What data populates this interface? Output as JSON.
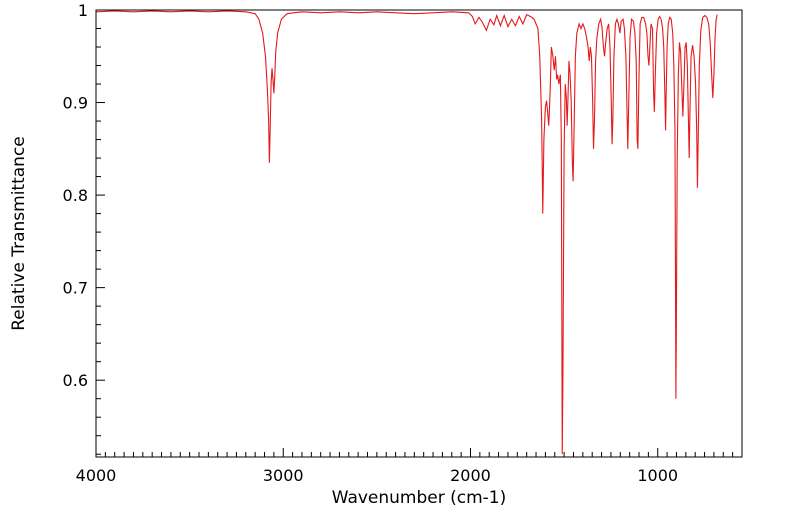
{
  "chart_data": {
    "type": "line",
    "title": "",
    "xlabel": "Wavenumber (cm-1)",
    "ylabel": "Relative Transmittance",
    "xlim": [
      4000,
      550
    ],
    "ylim": [
      0.517,
      1.0
    ],
    "x_reversed": true,
    "grid": false,
    "legend": "none",
    "line_color": "#e41a1c",
    "x_ticks": [
      {
        "value": 4000,
        "label": "4000"
      },
      {
        "value": 3000,
        "label": "3000"
      },
      {
        "value": 2000,
        "label": "2000"
      },
      {
        "value": 1000,
        "label": "1000"
      }
    ],
    "y_ticks": [
      {
        "value": 1.0,
        "label": "1"
      },
      {
        "value": 0.9,
        "label": "0.9"
      },
      {
        "value": 0.8,
        "label": "0.8"
      },
      {
        "value": 0.7,
        "label": "0.7"
      },
      {
        "value": 0.6,
        "label": "0.6"
      }
    ],
    "series": [
      {
        "points": [
          [
            4000,
            0.998
          ],
          [
            3900,
            0.999
          ],
          [
            3800,
            0.998
          ],
          [
            3700,
            0.999
          ],
          [
            3600,
            0.998
          ],
          [
            3500,
            0.999
          ],
          [
            3400,
            0.998
          ],
          [
            3300,
            0.999
          ],
          [
            3200,
            0.998
          ],
          [
            3150,
            0.996
          ],
          [
            3130,
            0.99
          ],
          [
            3110,
            0.975
          ],
          [
            3095,
            0.95
          ],
          [
            3085,
            0.915
          ],
          [
            3078,
            0.88
          ],
          [
            3074,
            0.835
          ],
          [
            3070,
            0.87
          ],
          [
            3065,
            0.92
          ],
          [
            3060,
            0.937
          ],
          [
            3055,
            0.925
          ],
          [
            3050,
            0.91
          ],
          [
            3045,
            0.93
          ],
          [
            3040,
            0.955
          ],
          [
            3030,
            0.975
          ],
          [
            3010,
            0.99
          ],
          [
            2980,
            0.996
          ],
          [
            2900,
            0.998
          ],
          [
            2800,
            0.997
          ],
          [
            2700,
            0.998
          ],
          [
            2600,
            0.997
          ],
          [
            2500,
            0.998
          ],
          [
            2400,
            0.997
          ],
          [
            2300,
            0.996
          ],
          [
            2200,
            0.997
          ],
          [
            2100,
            0.998
          ],
          [
            2010,
            0.997
          ],
          [
            1990,
            0.993
          ],
          [
            1975,
            0.985
          ],
          [
            1955,
            0.992
          ],
          [
            1940,
            0.988
          ],
          [
            1915,
            0.978
          ],
          [
            1895,
            0.99
          ],
          [
            1875,
            0.984
          ],
          [
            1860,
            0.994
          ],
          [
            1840,
            0.983
          ],
          [
            1820,
            0.994
          ],
          [
            1800,
            0.982
          ],
          [
            1780,
            0.99
          ],
          [
            1760,
            0.983
          ],
          [
            1740,
            0.993
          ],
          [
            1720,
            0.985
          ],
          [
            1700,
            0.995
          ],
          [
            1680,
            0.993
          ],
          [
            1660,
            0.99
          ],
          [
            1640,
            0.98
          ],
          [
            1630,
            0.95
          ],
          [
            1620,
            0.88
          ],
          [
            1614,
            0.78
          ],
          [
            1608,
            0.86
          ],
          [
            1600,
            0.895
          ],
          [
            1594,
            0.902
          ],
          [
            1588,
            0.89
          ],
          [
            1582,
            0.875
          ],
          [
            1575,
            0.91
          ],
          [
            1568,
            0.96
          ],
          [
            1560,
            0.95
          ],
          [
            1553,
            0.935
          ],
          [
            1546,
            0.95
          ],
          [
            1540,
            0.925
          ],
          [
            1535,
            0.93
          ],
          [
            1528,
            0.92
          ],
          [
            1520,
            0.93
          ],
          [
            1515,
            0.86
          ],
          [
            1510,
            0.52
          ],
          [
            1506,
            0.62
          ],
          [
            1500,
            0.85
          ],
          [
            1494,
            0.92
          ],
          [
            1488,
            0.905
          ],
          [
            1484,
            0.875
          ],
          [
            1480,
            0.9
          ],
          [
            1474,
            0.945
          ],
          [
            1468,
            0.93
          ],
          [
            1462,
            0.9
          ],
          [
            1456,
            0.835
          ],
          [
            1452,
            0.815
          ],
          [
            1446,
            0.88
          ],
          [
            1440,
            0.95
          ],
          [
            1432,
            0.975
          ],
          [
            1420,
            0.985
          ],
          [
            1410,
            0.98
          ],
          [
            1400,
            0.985
          ],
          [
            1390,
            0.98
          ],
          [
            1380,
            0.97
          ],
          [
            1372,
            0.96
          ],
          [
            1366,
            0.945
          ],
          [
            1360,
            0.96
          ],
          [
            1354,
            0.95
          ],
          [
            1348,
            0.905
          ],
          [
            1343,
            0.85
          ],
          [
            1338,
            0.88
          ],
          [
            1332,
            0.945
          ],
          [
            1325,
            0.97
          ],
          [
            1315,
            0.985
          ],
          [
            1305,
            0.99
          ],
          [
            1298,
            0.982
          ],
          [
            1290,
            0.96
          ],
          [
            1284,
            0.95
          ],
          [
            1278,
            0.965
          ],
          [
            1270,
            0.98
          ],
          [
            1262,
            0.985
          ],
          [
            1255,
            0.96
          ],
          [
            1248,
            0.9
          ],
          [
            1244,
            0.855
          ],
          [
            1240,
            0.88
          ],
          [
            1234,
            0.95
          ],
          [
            1226,
            0.985
          ],
          [
            1218,
            0.99
          ],
          [
            1210,
            0.985
          ],
          [
            1202,
            0.975
          ],
          [
            1195,
            0.988
          ],
          [
            1185,
            0.99
          ],
          [
            1178,
            0.98
          ],
          [
            1170,
            0.95
          ],
          [
            1164,
            0.89
          ],
          [
            1160,
            0.85
          ],
          [
            1155,
            0.9
          ],
          [
            1148,
            0.97
          ],
          [
            1140,
            0.99
          ],
          [
            1130,
            0.988
          ],
          [
            1122,
            0.975
          ],
          [
            1115,
            0.945
          ],
          [
            1110,
            0.86
          ],
          [
            1106,
            0.85
          ],
          [
            1100,
            0.93
          ],
          [
            1094,
            0.985
          ],
          [
            1085,
            0.992
          ],
          [
            1075,
            0.992
          ],
          [
            1065,
            0.985
          ],
          [
            1058,
            0.975
          ],
          [
            1052,
            0.95
          ],
          [
            1047,
            0.94
          ],
          [
            1042,
            0.96
          ],
          [
            1036,
            0.985
          ],
          [
            1028,
            0.98
          ],
          [
            1022,
            0.91
          ],
          [
            1018,
            0.89
          ],
          [
            1013,
            0.93
          ],
          [
            1006,
            0.975
          ],
          [
            998,
            0.99
          ],
          [
            990,
            0.993
          ],
          [
            982,
            0.99
          ],
          [
            974,
            0.98
          ],
          [
            968,
            0.96
          ],
          [
            962,
            0.91
          ],
          [
            958,
            0.87
          ],
          [
            955,
            0.91
          ],
          [
            950,
            0.96
          ],
          [
            944,
            0.985
          ],
          [
            936,
            0.992
          ],
          [
            928,
            0.99
          ],
          [
            920,
            0.975
          ],
          [
            914,
            0.94
          ],
          [
            908,
            0.87
          ],
          [
            903,
            0.58
          ],
          [
            900,
            0.68
          ],
          [
            896,
            0.84
          ],
          [
            890,
            0.93
          ],
          [
            884,
            0.965
          ],
          [
            878,
            0.955
          ],
          [
            872,
            0.92
          ],
          [
            866,
            0.885
          ],
          [
            860,
            0.92
          ],
          [
            854,
            0.96
          ],
          [
            848,
            0.965
          ],
          [
            842,
            0.94
          ],
          [
            836,
            0.88
          ],
          [
            832,
            0.84
          ],
          [
            828,
            0.89
          ],
          [
            822,
            0.95
          ],
          [
            814,
            0.962
          ],
          [
            806,
            0.95
          ],
          [
            798,
            0.92
          ],
          [
            792,
            0.87
          ],
          [
            788,
            0.808
          ],
          [
            784,
            0.86
          ],
          [
            778,
            0.94
          ],
          [
            770,
            0.978
          ],
          [
            760,
            0.992
          ],
          [
            748,
            0.994
          ],
          [
            738,
            0.992
          ],
          [
            728,
            0.985
          ],
          [
            720,
            0.965
          ],
          [
            712,
            0.93
          ],
          [
            706,
            0.905
          ],
          [
            700,
            0.93
          ],
          [
            694,
            0.97
          ],
          [
            688,
            0.99
          ],
          [
            682,
            0.995
          ]
        ]
      }
    ]
  }
}
